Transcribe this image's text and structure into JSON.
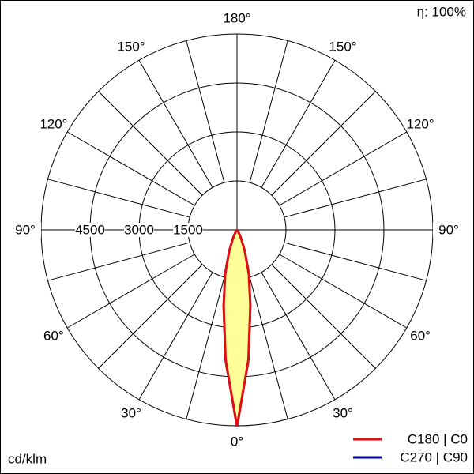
{
  "chart_data": {
    "type": "polar",
    "efficiency_label": "η: 100%",
    "unit_label": "cd/klm",
    "angles": [
      0,
      5,
      10,
      15,
      20,
      25,
      30,
      35,
      40
    ],
    "series": [
      {
        "name": "C270 | C90",
        "color": "#0000a0",
        "values": [
          6020,
          4000,
          2350,
          1400,
          700,
          300,
          120,
          40,
          0
        ]
      },
      {
        "name": "C180 | C0",
        "color": "#e01010",
        "values": [
          6020,
          4000,
          2350,
          1400,
          700,
          300,
          120,
          40,
          0
        ]
      }
    ],
    "fill_color": "#ffff99",
    "rlim": [
      0,
      6000
    ],
    "rticks": [
      1500,
      3000,
      4500
    ],
    "angle_ticks": [
      {
        "value": 0,
        "label": "0°"
      },
      {
        "value": 30,
        "label": "30°"
      },
      {
        "value": 60,
        "label": "60°"
      },
      {
        "value": 90,
        "label": "90°"
      },
      {
        "value": 120,
        "label": "120°"
      },
      {
        "value": 150,
        "label": "150°"
      },
      {
        "value": 180,
        "label": "180°"
      }
    ]
  }
}
